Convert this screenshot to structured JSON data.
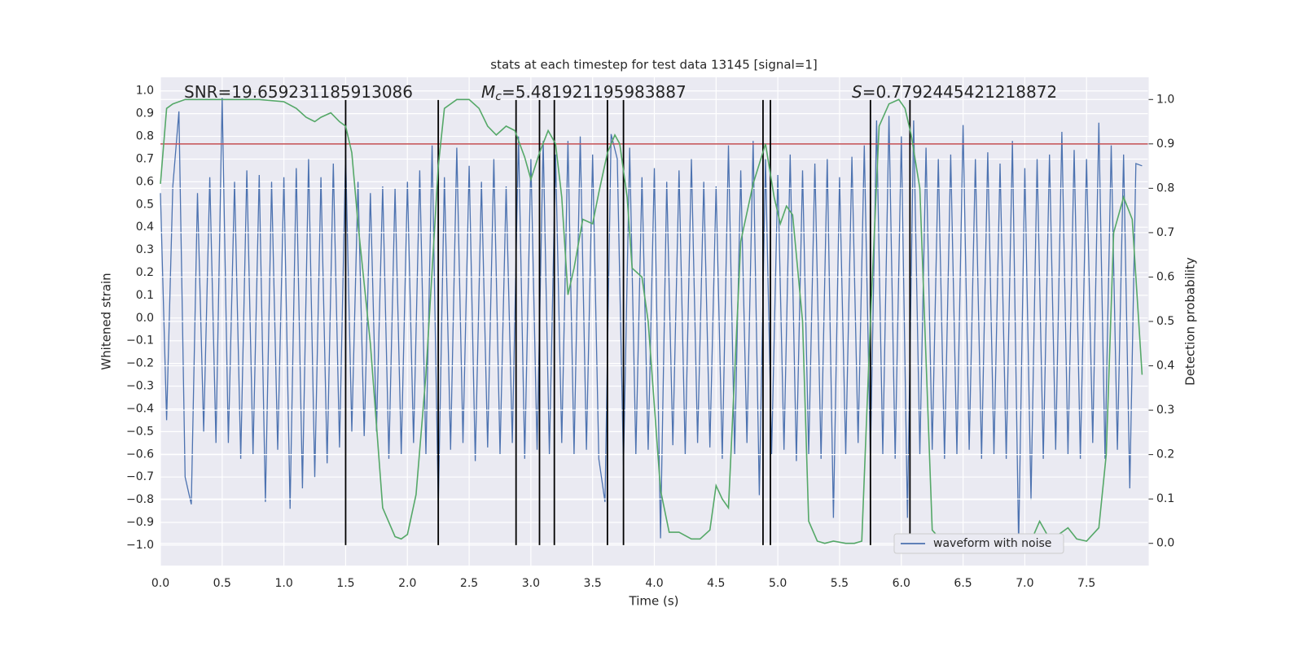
{
  "chart_data": {
    "type": "line",
    "title": "stats at each timestep for test data 13145 [signal=1]",
    "x_label": "Time (s)",
    "y_label": "Whitened strain",
    "y2_label": "Detection probability",
    "xlim": [
      0,
      8
    ],
    "ylim": [
      -1.09,
      1.06
    ],
    "y2lim": [
      -0.05,
      1.05
    ],
    "xticks": [
      {
        "value": 0,
        "label": "0.0"
      },
      0.5,
      {
        "value": 1,
        "label": "1.0"
      },
      1.5,
      {
        "value": 2,
        "label": "2.0"
      },
      2.5,
      {
        "value": 3,
        "label": "3.0"
      },
      3.5,
      {
        "value": 4,
        "label": "4.0"
      },
      4.5,
      {
        "value": 5,
        "label": "5.0"
      },
      5.5,
      {
        "value": 6,
        "label": "6.0"
      },
      6.5,
      {
        "value": 7,
        "label": "7.0"
      },
      7.5
    ],
    "yticks": [
      {
        "value": 1,
        "label": "1.0"
      },
      0.9,
      0.8,
      0.7,
      0.6,
      0.5,
      0.4,
      0.3,
      0.2,
      0.1,
      {
        "value": 0,
        "label": "0.0"
      },
      {
        "value": -0.1,
        "label": "−0.1"
      },
      {
        "value": -0.2,
        "label": "−0.2"
      },
      {
        "value": -0.3,
        "label": "−0.3"
      },
      {
        "value": -0.4,
        "label": "−0.4"
      },
      {
        "value": -0.5,
        "label": "−0.5"
      },
      {
        "value": -0.6,
        "label": "−0.6"
      },
      {
        "value": -0.7,
        "label": "−0.7"
      },
      {
        "value": -0.8,
        "label": "−0.8"
      },
      {
        "value": -0.9,
        "label": "−0.9"
      },
      {
        "value": -1,
        "label": "−1.0"
      }
    ],
    "y2ticks": [
      {
        "value": 0,
        "label": "0.0"
      },
      0.1,
      0.2,
      0.3,
      0.4,
      0.5,
      0.6,
      0.7,
      0.8,
      0.9,
      {
        "value": 1,
        "label": "1.0"
      }
    ],
    "grid": true,
    "background": "#eaeaf2",
    "legend_loc": "lower right",
    "series": [
      {
        "name": "waveform with noise",
        "color": "#4c72b0",
        "x": [
          0,
          0.05,
          0.1,
          0.15,
          0.2,
          0.25,
          0.3,
          0.35,
          0.4,
          0.45,
          0.5,
          0.55,
          0.6,
          0.65,
          0.7,
          0.75,
          0.8,
          0.85,
          0.9,
          0.95,
          1,
          1.05,
          1.1,
          1.15,
          1.2,
          1.25,
          1.3,
          1.35,
          1.4,
          1.45,
          1.5,
          1.55,
          1.6,
          1.65,
          1.7,
          1.75,
          1.8,
          1.85,
          1.9,
          1.95,
          2,
          2.05,
          2.1,
          2.15,
          2.2,
          2.25,
          2.3,
          2.35,
          2.4,
          2.45,
          2.5,
          2.55,
          2.6,
          2.65,
          2.7,
          2.75,
          2.8,
          2.85,
          2.9,
          2.95,
          3,
          3.05,
          3.1,
          3.15,
          3.2,
          3.25,
          3.3,
          3.35,
          3.4,
          3.45,
          3.5,
          3.55,
          3.6,
          3.65,
          3.7,
          3.75,
          3.8,
          3.85,
          3.9,
          3.95,
          4,
          4.05,
          4.1,
          4.15,
          4.2,
          4.25,
          4.3,
          4.35,
          4.4,
          4.45,
          4.5,
          4.55,
          4.6,
          4.65,
          4.7,
          4.75,
          4.8,
          4.85,
          4.9,
          4.95,
          5,
          5.05,
          5.1,
          5.15,
          5.2,
          5.25,
          5.3,
          5.35,
          5.4,
          5.45,
          5.5,
          5.55,
          5.6,
          5.65,
          5.7,
          5.75,
          5.8,
          5.85,
          5.9,
          5.95,
          6,
          6.05,
          6.1,
          6.15,
          6.2,
          6.25,
          6.3,
          6.35,
          6.4,
          6.45,
          6.5,
          6.55,
          6.6,
          6.65,
          6.7,
          6.75,
          6.8,
          6.85,
          6.9,
          6.95,
          7,
          7.05,
          7.1,
          7.15,
          7.2,
          7.25,
          7.3,
          7.35,
          7.4,
          7.45,
          7.5,
          7.55,
          7.6,
          7.65,
          7.7,
          7.75,
          7.8,
          7.85,
          7.9,
          7.95
        ],
        "values": [
          0.55,
          -0.45,
          0.58,
          0.91,
          -0.7,
          -0.82,
          0.55,
          -0.5,
          0.62,
          -0.55,
          0.97,
          -0.55,
          0.6,
          -0.62,
          0.65,
          -0.6,
          0.63,
          -0.81,
          0.6,
          -0.58,
          0.62,
          -0.84,
          0.66,
          -0.75,
          0.7,
          -0.7,
          0.62,
          -0.64,
          0.68,
          -0.57,
          0.72,
          -0.5,
          0.6,
          -0.52,
          0.55,
          -0.5,
          0.58,
          -0.62,
          0.57,
          -0.6,
          0.6,
          -0.55,
          0.65,
          -0.6,
          0.76,
          -0.83,
          0.62,
          -0.58,
          0.75,
          -0.55,
          0.67,
          -0.63,
          0.6,
          -0.57,
          0.7,
          -0.6,
          0.58,
          -0.55,
          0.8,
          -0.62,
          0.7,
          -0.58,
          0.78,
          -0.6,
          0.72,
          -0.55,
          0.78,
          -0.6,
          0.8,
          -0.58,
          0.72,
          -0.62,
          -0.81,
          0.81,
          0.7,
          -0.65,
          0.75,
          -0.6,
          0.62,
          -0.58,
          0.66,
          -0.97,
          0.6,
          -0.56,
          0.65,
          -0.6,
          0.7,
          -0.55,
          0.6,
          -0.57,
          0.58,
          -0.62,
          0.76,
          -0.6,
          0.65,
          -0.55,
          0.78,
          -0.78,
          0.7,
          -0.6,
          0.63,
          -0.58,
          0.72,
          -0.63,
          0.65,
          -0.6,
          0.68,
          -0.62,
          0.7,
          -0.88,
          0.62,
          -0.6,
          0.71,
          -0.55,
          0.76,
          -0.62,
          0.87,
          -0.6,
          0.89,
          -0.62,
          0.8,
          -0.88,
          0.87,
          -0.6,
          0.75,
          -0.58,
          0.7,
          -0.62,
          0.72,
          -0.6,
          0.85,
          -0.58,
          0.7,
          -0.62,
          0.73,
          -0.6,
          0.68,
          -0.62,
          0.78,
          -1.0,
          0.66,
          -0.8,
          0.7,
          -0.62,
          0.72,
          -0.58,
          0.82,
          -0.6,
          0.74,
          -0.62,
          0.7,
          -0.55,
          0.86,
          -0.62,
          0.76,
          -0.58,
          0.72,
          -0.75,
          0.68,
          0.67
        ]
      },
      {
        "name": "Detection probability",
        "color": "#55a868",
        "axis": "y2",
        "in_legend": false,
        "x": [
          0,
          0.05,
          0.1,
          0.2,
          0.5,
          0.8,
          1,
          1.1,
          1.18,
          1.25,
          1.3,
          1.38,
          1.45,
          1.5,
          1.55,
          1.6,
          1.7,
          1.8,
          1.9,
          1.95,
          2,
          2.07,
          2.15,
          2.25,
          2.3,
          2.4,
          2.5,
          2.58,
          2.65,
          2.72,
          2.8,
          2.87,
          2.95,
          3,
          3.07,
          3.14,
          3.2,
          3.25,
          3.3,
          3.35,
          3.42,
          3.5,
          3.55,
          3.62,
          3.68,
          3.72,
          3.78,
          3.82,
          3.9,
          3.95,
          4.05,
          4.12,
          4.2,
          4.3,
          4.37,
          4.45,
          4.5,
          4.55,
          4.6,
          4.7,
          4.8,
          4.9,
          4.97,
          5.02,
          5.07,
          5.12,
          5.2,
          5.25,
          5.32,
          5.38,
          5.45,
          5.55,
          5.62,
          5.68,
          5.75,
          5.82,
          5.9,
          5.98,
          6.03,
          6.08,
          6.15,
          6.25,
          6.33,
          6.5,
          6.95,
          7.05,
          7.12,
          7.18,
          7.25,
          7.35,
          7.42,
          7.5,
          7.6,
          7.66,
          7.72,
          7.8,
          7.87,
          7.95
        ],
        "values": [
          0.81,
          0.98,
          0.99,
          1.0,
          1.0,
          1.0,
          0.995,
          0.98,
          0.96,
          0.95,
          0.96,
          0.97,
          0.95,
          0.94,
          0.88,
          0.72,
          0.45,
          0.08,
          0.015,
          0.01,
          0.02,
          0.11,
          0.38,
          0.85,
          0.98,
          1.0,
          1.0,
          0.98,
          0.94,
          0.92,
          0.94,
          0.93,
          0.87,
          0.82,
          0.88,
          0.93,
          0.9,
          0.78,
          0.56,
          0.62,
          0.73,
          0.72,
          0.79,
          0.88,
          0.92,
          0.9,
          0.78,
          0.62,
          0.6,
          0.5,
          0.12,
          0.025,
          0.025,
          0.01,
          0.01,
          0.03,
          0.13,
          0.1,
          0.08,
          0.68,
          0.81,
          0.9,
          0.78,
          0.72,
          0.76,
          0.74,
          0.5,
          0.05,
          0.005,
          0.0,
          0.005,
          0.0,
          0.0,
          0.005,
          0.5,
          0.94,
          0.99,
          1.0,
          0.98,
          0.92,
          0.8,
          0.03,
          0.005,
          0.003,
          0.0,
          0.005,
          0.05,
          0.02,
          0.015,
          0.035,
          0.01,
          0.005,
          0.035,
          0.2,
          0.7,
          0.78,
          0.73,
          0.38
        ]
      }
    ],
    "threshold": {
      "value": 0.9,
      "axis": "y2",
      "color": "#c44e52"
    },
    "vlines": {
      "x": [
        1.5,
        2.25,
        2.88,
        3.07,
        3.19,
        3.62,
        3.75,
        4.88,
        4.94,
        5.75,
        6.07
      ],
      "ymin": -1,
      "ymax": 0.96,
      "color": "#000000"
    },
    "annotations": [
      {
        "text": "SNR=19.659231185913086"
      },
      {
        "symbol": "M",
        "subscript": "c",
        "text": "=5.481921195983887"
      },
      {
        "symbol": "S",
        "text": "=0.7792445421218872"
      }
    ]
  }
}
